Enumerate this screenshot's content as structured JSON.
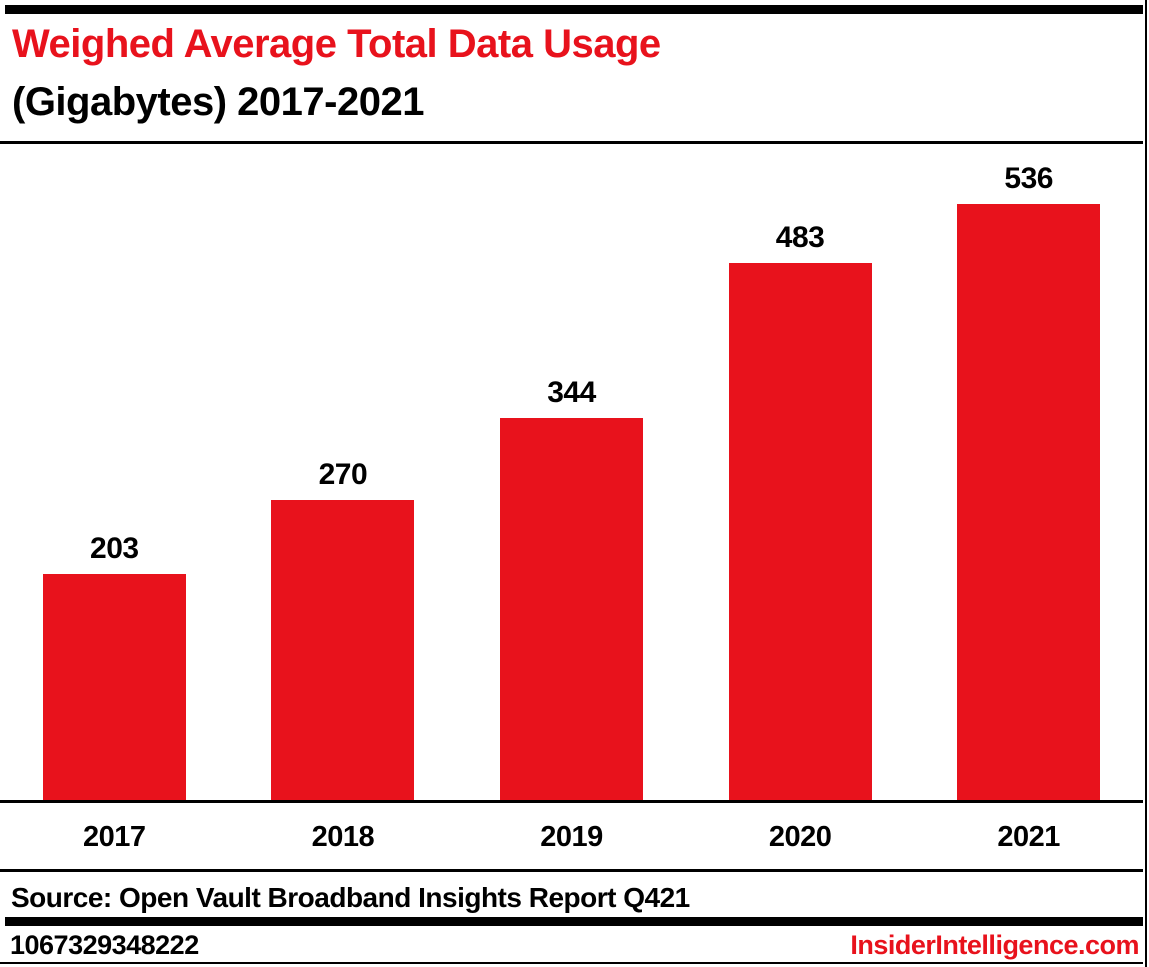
{
  "page": {
    "title_line1": "Weighed Average Total Data Usage",
    "title_line2": "(Gigabytes) 2017-2021",
    "source": "Source: Open Vault Broadband Insights Report Q421",
    "footer_id": "1067329348222",
    "footer_site": "InsiderIntelligence.com"
  },
  "colors": {
    "accent_red": "#e8121c",
    "text_black": "#000000",
    "rule_black": "#000000",
    "background": "#ffffff"
  },
  "chart_data": {
    "type": "bar",
    "title": "Weighed Average Total Data Usage (Gigabytes) 2017-2021",
    "categories": [
      "2017",
      "2018",
      "2019",
      "2020",
      "2021"
    ],
    "values": [
      203,
      270,
      344,
      483,
      536
    ],
    "xlabel": "",
    "ylabel": "",
    "ylim": [
      0,
      590
    ],
    "bar_color": "#e8121c",
    "data_labels": true,
    "grid": false,
    "legend": false,
    "source": "Open Vault Broadband Insights Report Q421"
  }
}
